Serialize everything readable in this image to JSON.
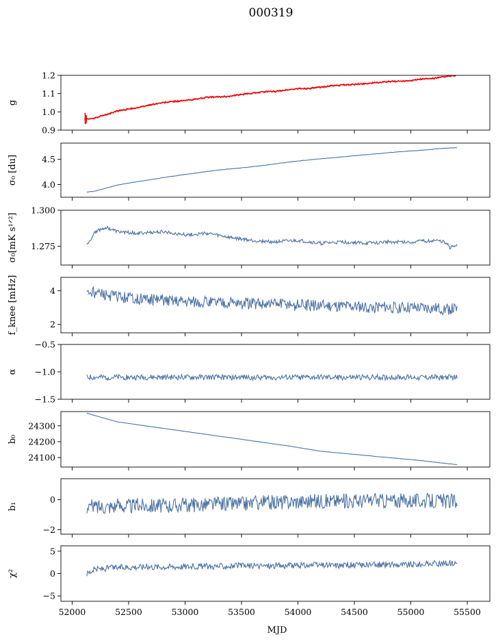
{
  "figure": {
    "title": "000319"
  },
  "colors": {
    "series": "#4c72a4",
    "fit": "#ff0000"
  },
  "chart_data": {
    "type": "line",
    "title": "000319",
    "xlabel": "MJD",
    "xlim": [
      51900,
      55700
    ],
    "xticks": [
      52000,
      52500,
      53000,
      53500,
      54000,
      54500,
      55000,
      55500
    ],
    "x_range": [
      52110,
      55410
    ],
    "panels": [
      {
        "id": "g",
        "ylabel": "g",
        "ylim": [
          0.9,
          1.2
        ],
        "yticks": [
          0.9,
          1.0,
          1.1,
          1.2
        ],
        "ytick_labels": [
          "0.9",
          "1.0",
          "1.1",
          "1.2"
        ],
        "series": [
          {
            "kind": "line",
            "color": "#4c72a4",
            "noise": 0.002,
            "points": [
              [
                52110,
                0.96
              ],
              [
                52200,
                0.965
              ],
              [
                52300,
                0.985
              ],
              [
                52400,
                1.005
              ],
              [
                52500,
                1.015
              ],
              [
                52600,
                1.025
              ],
              [
                52700,
                1.04
              ],
              [
                52800,
                1.05
              ],
              [
                52900,
                1.057
              ],
              [
                53000,
                1.062
              ],
              [
                53100,
                1.07
              ],
              [
                53200,
                1.08
              ],
              [
                53300,
                1.082
              ],
              [
                53400,
                1.085
              ],
              [
                53500,
                1.095
              ],
              [
                53600,
                1.103
              ],
              [
                53700,
                1.11
              ],
              [
                53800,
                1.112
              ],
              [
                53900,
                1.12
              ],
              [
                54000,
                1.127
              ],
              [
                54100,
                1.128
              ],
              [
                54200,
                1.135
              ],
              [
                54300,
                1.143
              ],
              [
                54400,
                1.147
              ],
              [
                54500,
                1.15
              ],
              [
                54600,
                1.155
              ],
              [
                54700,
                1.16
              ],
              [
                54800,
                1.165
              ],
              [
                54900,
                1.168
              ],
              [
                55000,
                1.172
              ],
              [
                55100,
                1.18
              ],
              [
                55200,
                1.183
              ],
              [
                55300,
                1.192
              ],
              [
                55410,
                1.2
              ]
            ]
          },
          {
            "kind": "line",
            "color": "#ff0000",
            "noise": 0.004,
            "points": [
              [
                52110,
                0.96
              ],
              [
                52200,
                0.965
              ],
              [
                52300,
                0.985
              ],
              [
                52400,
                1.005
              ],
              [
                52500,
                1.015
              ],
              [
                52600,
                1.025
              ],
              [
                52700,
                1.04
              ],
              [
                52800,
                1.05
              ],
              [
                52900,
                1.057
              ],
              [
                53000,
                1.062
              ],
              [
                53100,
                1.07
              ],
              [
                53200,
                1.08
              ],
              [
                53300,
                1.082
              ],
              [
                53400,
                1.085
              ],
              [
                53500,
                1.095
              ],
              [
                53600,
                1.103
              ],
              [
                53700,
                1.11
              ],
              [
                53800,
                1.112
              ],
              [
                53900,
                1.12
              ],
              [
                54000,
                1.127
              ],
              [
                54100,
                1.128
              ],
              [
                54200,
                1.135
              ],
              [
                54300,
                1.143
              ],
              [
                54400,
                1.147
              ],
              [
                54500,
                1.15
              ],
              [
                54600,
                1.155
              ],
              [
                54700,
                1.16
              ],
              [
                54800,
                1.165
              ],
              [
                54900,
                1.168
              ],
              [
                55000,
                1.172
              ],
              [
                55100,
                1.18
              ],
              [
                55200,
                1.183
              ],
              [
                55300,
                1.192
              ],
              [
                55410,
                1.2
              ]
            ]
          },
          {
            "kind": "errorbar",
            "color": "#ff0000",
            "points": [
              [
                52115,
                0.965,
                0.03
              ],
              [
                52120,
                0.958,
                0.025
              ],
              [
                52125,
                0.96,
                0.02
              ]
            ]
          }
        ]
      },
      {
        "id": "sigma0-du",
        "ylabel": "σ₀ [du]",
        "ylim": [
          3.75,
          4.82
        ],
        "yticks": [
          4.0,
          4.5
        ],
        "ytick_labels": [
          "4.0",
          "4.5"
        ],
        "series": [
          {
            "kind": "line",
            "color": "#4c72a4",
            "noise": 0.004,
            "points": [
              [
                52130,
                3.85
              ],
              [
                52200,
                3.87
              ],
              [
                52300,
                3.93
              ],
              [
                52400,
                3.99
              ],
              [
                52500,
                4.03
              ],
              [
                52700,
                4.1
              ],
              [
                52900,
                4.17
              ],
              [
                53100,
                4.23
              ],
              [
                53300,
                4.29
              ],
              [
                53500,
                4.33
              ],
              [
                53700,
                4.38
              ],
              [
                53900,
                4.44
              ],
              [
                54100,
                4.49
              ],
              [
                54300,
                4.53
              ],
              [
                54500,
                4.57
              ],
              [
                54700,
                4.61
              ],
              [
                54900,
                4.65
              ],
              [
                55100,
                4.68
              ],
              [
                55300,
                4.72
              ],
              [
                55410,
                4.73
              ]
            ]
          }
        ]
      },
      {
        "id": "sigma0-mks",
        "ylabel": "σ₀[mK s¹ᐟ²]",
        "ylim": [
          1.262,
          1.3
        ],
        "yticks": [
          1.275,
          1.3
        ],
        "ytick_labels": [
          "1.275",
          "1.300"
        ],
        "series": [
          {
            "kind": "line",
            "color": "#4c72a4",
            "noise": 0.0012,
            "points": [
              [
                52130,
                1.276
              ],
              [
                52150,
                1.278
              ],
              [
                52200,
                1.285
              ],
              [
                52300,
                1.288
              ],
              [
                52400,
                1.285
              ],
              [
                52600,
                1.284
              ],
              [
                52800,
                1.285
              ],
              [
                53000,
                1.283
              ],
              [
                53200,
                1.284
              ],
              [
                53400,
                1.281
              ],
              [
                53600,
                1.279
              ],
              [
                53800,
                1.278
              ],
              [
                54000,
                1.279
              ],
              [
                54200,
                1.277
              ],
              [
                54400,
                1.278
              ],
              [
                54600,
                1.277
              ],
              [
                54800,
                1.278
              ],
              [
                55000,
                1.278
              ],
              [
                55200,
                1.279
              ],
              [
                55300,
                1.278
              ],
              [
                55350,
                1.274
              ],
              [
                55410,
                1.276
              ]
            ]
          }
        ]
      },
      {
        "id": "fknee",
        "ylabel": "f_knee [mHz]",
        "ylim": [
          1.5,
          4.8
        ],
        "yticks": [
          2,
          4
        ],
        "ytick_labels": [
          "2",
          "4"
        ],
        "series": [
          {
            "kind": "line",
            "color": "#4c72a4",
            "noise": 0.35,
            "points": [
              [
                52130,
                4.0
              ],
              [
                52300,
                3.7
              ],
              [
                52600,
                3.5
              ],
              [
                53000,
                3.4
              ],
              [
                53500,
                3.25
              ],
              [
                54000,
                3.15
              ],
              [
                54500,
                3.05
              ],
              [
                55000,
                3.0
              ],
              [
                55410,
                2.9
              ]
            ]
          }
        ]
      },
      {
        "id": "alpha",
        "ylabel": "α",
        "ylim": [
          -1.5,
          -0.5
        ],
        "yticks": [
          -1.5,
          -1.0,
          -0.5
        ],
        "ytick_labels": [
          "−1.5",
          "−1.0",
          "−0.5"
        ],
        "series": [
          {
            "kind": "line",
            "color": "#4c72a4",
            "noise": 0.05,
            "points": [
              [
                52130,
                -1.1
              ],
              [
                53000,
                -1.1
              ],
              [
                54000,
                -1.1
              ],
              [
                55000,
                -1.1
              ],
              [
                55410,
                -1.1
              ]
            ]
          }
        ]
      },
      {
        "id": "b0",
        "ylabel": "b₀",
        "ylim": [
          24040,
          24390
        ],
        "yticks": [
          24100,
          24200,
          24300
        ],
        "ytick_labels": [
          "24100",
          "24200",
          "24300"
        ],
        "series": [
          {
            "kind": "line",
            "color": "#4c72a4",
            "noise": 0.8,
            "points": [
              [
                52130,
                24380
              ],
              [
                52250,
                24355
              ],
              [
                52400,
                24325
              ],
              [
                52700,
                24295
              ],
              [
                53000,
                24265
              ],
              [
                53300,
                24235
              ],
              [
                53600,
                24205
              ],
              [
                53900,
                24175
              ],
              [
                54200,
                24140
              ],
              [
                54500,
                24120
              ],
              [
                54800,
                24100
              ],
              [
                55100,
                24080
              ],
              [
                55410,
                24055
              ]
            ]
          }
        ]
      },
      {
        "id": "b1",
        "ylabel": "b₁",
        "ylim": [
          -2.3,
          1.4
        ],
        "yticks": [
          -2,
          0
        ],
        "ytick_labels": [
          "−2",
          "0"
        ],
        "series": [
          {
            "kind": "line",
            "color": "#4c72a4",
            "noise": 0.5,
            "points": [
              [
                52130,
                -0.5
              ],
              [
                52500,
                -0.4
              ],
              [
                53000,
                -0.35
              ],
              [
                53500,
                -0.25
              ],
              [
                54000,
                -0.1
              ],
              [
                54500,
                -0.05
              ],
              [
                55000,
                -0.05
              ],
              [
                55410,
                -0.1
              ]
            ]
          }
        ]
      },
      {
        "id": "chi2",
        "ylabel": "χ²",
        "ylim": [
          -6.2,
          6.2
        ],
        "yticks": [
          -5,
          0,
          5
        ],
        "ytick_labels": [
          "−5",
          "0",
          "5"
        ],
        "series": [
          {
            "kind": "line",
            "color": "#4c72a4",
            "noise": 0.7,
            "points": [
              [
                52130,
                0.0
              ],
              [
                52200,
                1.0
              ],
              [
                52500,
                1.5
              ],
              [
                53000,
                1.6
              ],
              [
                53500,
                1.7
              ],
              [
                54000,
                1.8
              ],
              [
                54500,
                1.9
              ],
              [
                55000,
                2.0
              ],
              [
                55410,
                2.4
              ]
            ]
          }
        ]
      }
    ]
  }
}
